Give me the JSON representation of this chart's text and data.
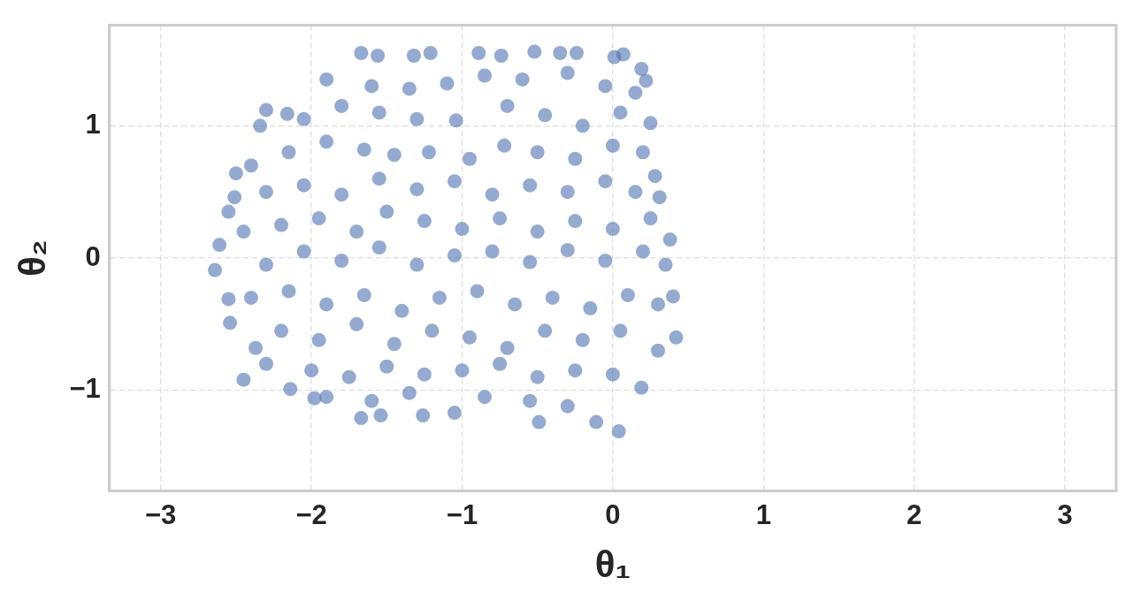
{
  "chart_data": {
    "type": "scatter",
    "xlabel": "θ₁",
    "ylabel": "θ₂",
    "xlim": [
      -3.34,
      3.34
    ],
    "ylim": [
      -1.76,
      1.76
    ],
    "xticks": [
      {
        "value": -3,
        "label": "−3"
      },
      {
        "value": -2,
        "label": "−2"
      },
      {
        "value": -1,
        "label": "−1"
      },
      0,
      1,
      2,
      3
    ],
    "yticks": [
      {
        "value": -1,
        "label": "−1"
      },
      0,
      1
    ],
    "grid": true,
    "marker": "circle",
    "series": [
      {
        "color": "#4c72b0",
        "x": [
          -1.67,
          -1.56,
          -1.32,
          -1.21,
          -0.89,
          -0.74,
          -0.52,
          -0.35,
          -0.24,
          0.01,
          0.07,
          -2.64,
          -2.61,
          -2.51,
          -2.5,
          -2.55,
          -2.54,
          -2.34,
          -2.16,
          -2.37,
          -2.45,
          -2.14,
          -1.98,
          -1.67,
          -1.54,
          -1.26,
          -1.05,
          -0.49,
          0.04,
          -0.11,
          0.19,
          0.42,
          0.4,
          0.38,
          0.31,
          0.28,
          0.25,
          0.22,
          0.19,
          -1.9,
          -1.6,
          -1.35,
          -1.1,
          -0.85,
          -0.6,
          -0.3,
          -0.05,
          0.15,
          -2.3,
          -2.05,
          -1.8,
          -1.55,
          -1.3,
          -0.7,
          -0.45,
          -0.2,
          0.05,
          -2.4,
          -2.15,
          -1.9,
          -1.65,
          -1.45,
          -1.22,
          -0.95,
          -0.72,
          -0.5,
          -0.25,
          0.0,
          0.2,
          -2.55,
          -2.3,
          -2.05,
          -1.8,
          -1.55,
          -1.3,
          -1.05,
          -0.8,
          -0.55,
          -0.3,
          -0.05,
          0.15,
          -2.45,
          -2.2,
          -1.95,
          -1.7,
          -1.5,
          -1.25,
          -1.0,
          -0.75,
          -0.5,
          -0.25,
          0.0,
          0.25,
          -2.3,
          -2.05,
          -1.8,
          -1.55,
          -1.3,
          -1.05,
          -0.8,
          -0.55,
          -0.3,
          -0.05,
          0.2,
          0.35,
          -2.4,
          -2.15,
          -1.9,
          -1.65,
          -1.4,
          -1.15,
          -0.9,
          -0.65,
          -0.4,
          -0.15,
          0.1,
          0.3,
          -2.2,
          -1.95,
          -1.7,
          -1.45,
          -1.2,
          -0.95,
          -0.7,
          -0.45,
          -0.2,
          0.05,
          0.3,
          -2.3,
          -2.0,
          -1.75,
          -1.5,
          -1.25,
          -1.0,
          -0.75,
          -0.5,
          -0.25,
          0.0,
          -1.9,
          -1.6,
          -1.35,
          -0.85,
          -0.55,
          -0.3,
          -1.04
        ],
        "values": [
          1.55,
          1.53,
          1.53,
          1.55,
          1.55,
          1.53,
          1.56,
          1.55,
          1.55,
          1.52,
          1.54,
          -0.09,
          0.1,
          0.46,
          0.64,
          -0.31,
          -0.49,
          1.0,
          1.09,
          -0.68,
          -0.92,
          -0.99,
          -1.06,
          -1.21,
          -1.19,
          -1.19,
          -1.17,
          -1.24,
          -1.31,
          -1.24,
          -0.98,
          -0.6,
          -0.29,
          0.14,
          0.46,
          0.62,
          1.02,
          1.34,
          1.43,
          1.35,
          1.3,
          1.28,
          1.32,
          1.38,
          1.35,
          1.4,
          1.3,
          1.25,
          1.12,
          1.05,
          1.15,
          1.1,
          1.05,
          1.15,
          1.08,
          1.0,
          1.1,
          0.7,
          0.8,
          0.88,
          0.82,
          0.78,
          0.8,
          0.75,
          0.85,
          0.8,
          0.75,
          0.85,
          0.8,
          0.35,
          0.5,
          0.55,
          0.48,
          0.6,
          0.52,
          0.58,
          0.48,
          0.55,
          0.5,
          0.58,
          0.5,
          0.2,
          0.25,
          0.3,
          0.2,
          0.35,
          0.28,
          0.22,
          0.3,
          0.2,
          0.28,
          0.22,
          0.3,
          -0.05,
          0.05,
          -0.02,
          0.08,
          -0.05,
          0.02,
          0.05,
          -0.03,
          0.06,
          -0.02,
          0.05,
          -0.05,
          -0.3,
          -0.25,
          -0.35,
          -0.28,
          -0.4,
          -0.3,
          -0.25,
          -0.35,
          -0.3,
          -0.38,
          -0.28,
          -0.35,
          -0.55,
          -0.62,
          -0.5,
          -0.65,
          -0.55,
          -0.6,
          -0.68,
          -0.55,
          -0.62,
          -0.55,
          -0.7,
          -0.8,
          -0.85,
          -0.9,
          -0.82,
          -0.88,
          -0.85,
          -0.8,
          -0.9,
          -0.85,
          -0.88,
          -1.05,
          -1.08,
          -1.02,
          -1.05,
          -1.08,
          -1.12,
          1.04
        ]
      }
    ]
  }
}
